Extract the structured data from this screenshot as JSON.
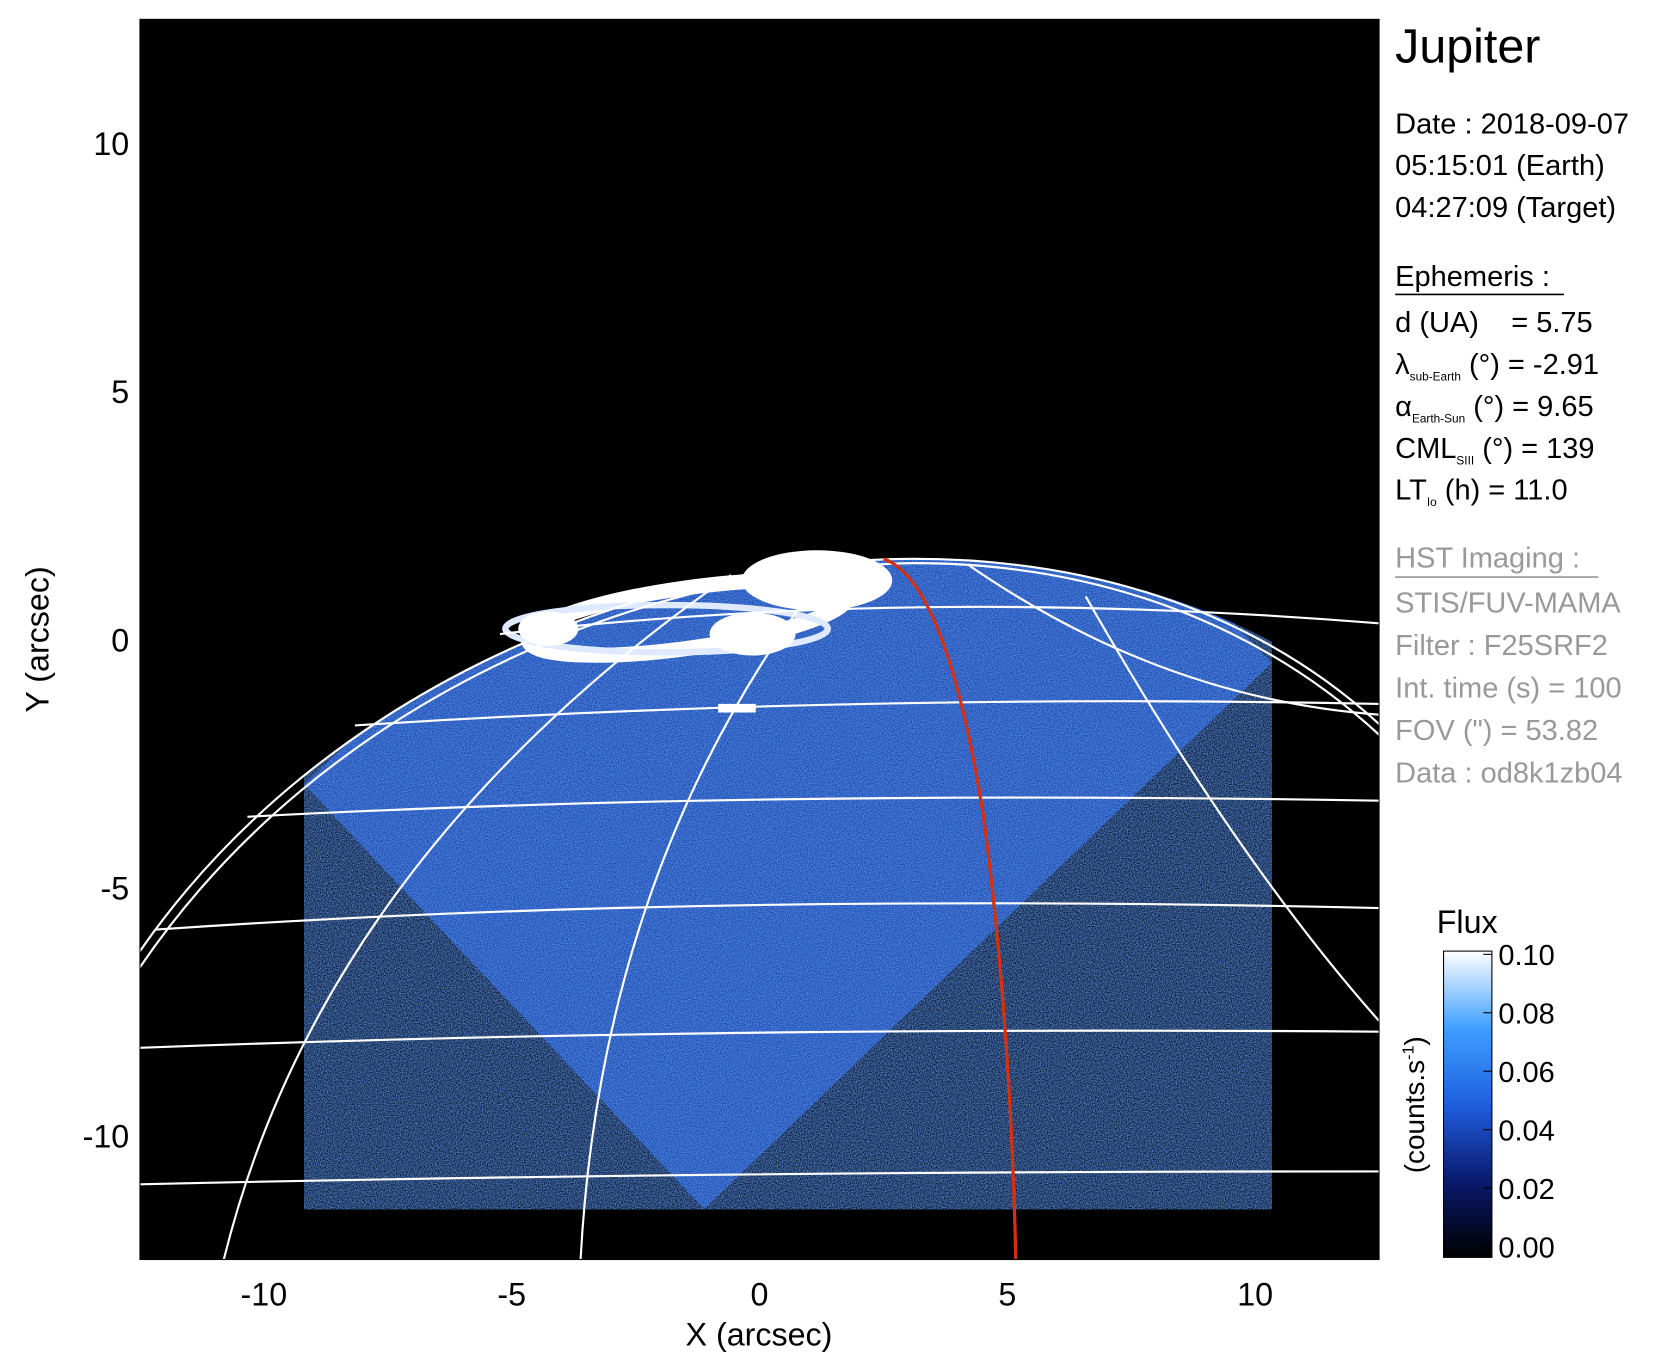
{
  "chart_data": {
    "type": "image",
    "xlabel": "X (arcsec)",
    "ylabel": "Y (arcsec)",
    "xlim": [
      -12.5,
      12.5
    ],
    "ylim": [
      -12.5,
      12.5
    ],
    "xticks": [
      -10,
      -5,
      0,
      5,
      10
    ],
    "yticks": [
      -10,
      -5,
      0,
      5,
      10
    ],
    "colorbar": {
      "title": "Flux",
      "label": [
        "(counts.s",
        "-1",
        ")"
      ],
      "clim": [
        0,
        0.1
      ],
      "ticks": [
        {
          "value": 0,
          "label": "0.00"
        },
        {
          "value": 0.02,
          "label": "0.02"
        },
        {
          "value": 0.04,
          "label": "0.04"
        },
        {
          "value": 0.06,
          "label": "0.06"
        },
        {
          "value": 0.08,
          "label": "0.08"
        },
        {
          "value": 0.1,
          "label": "0.10"
        }
      ],
      "colors": [
        "#000000",
        "#0a1a6e",
        "#1f5fe0",
        "#3fa0ff",
        "#ffffff"
      ]
    },
    "info": {
      "title": "Jupiter",
      "date": [
        "Date : 2018-09-07",
        "05:15:01 (Earth)",
        "04:27:09 (Target)"
      ],
      "ephemeris_title": "Ephemeris :",
      "ephemeris": [
        {
          "main": "d (UA)    = 5.75"
        },
        {
          "main": "λ",
          "sub": "sub-Earth",
          "rest": " (°) = -2.91"
        },
        {
          "main": "α",
          "sub": "Earth-Sun",
          "rest": " (°) = 9.65"
        },
        {
          "main": "CML",
          "sub": "SIII",
          "rest": " (°) = 139"
        },
        {
          "main": "LT",
          "sub": "Io",
          "rest": " (h) = 11.0"
        }
      ],
      "hst_title": "HST Imaging :",
      "hst": [
        "STIS/FUV-MAMA",
        "Filter : F25SRF2",
        "Int. time (s) = 100",
        "FOV (\") = 53.82",
        "Data : od8k1zb04"
      ]
    }
  }
}
